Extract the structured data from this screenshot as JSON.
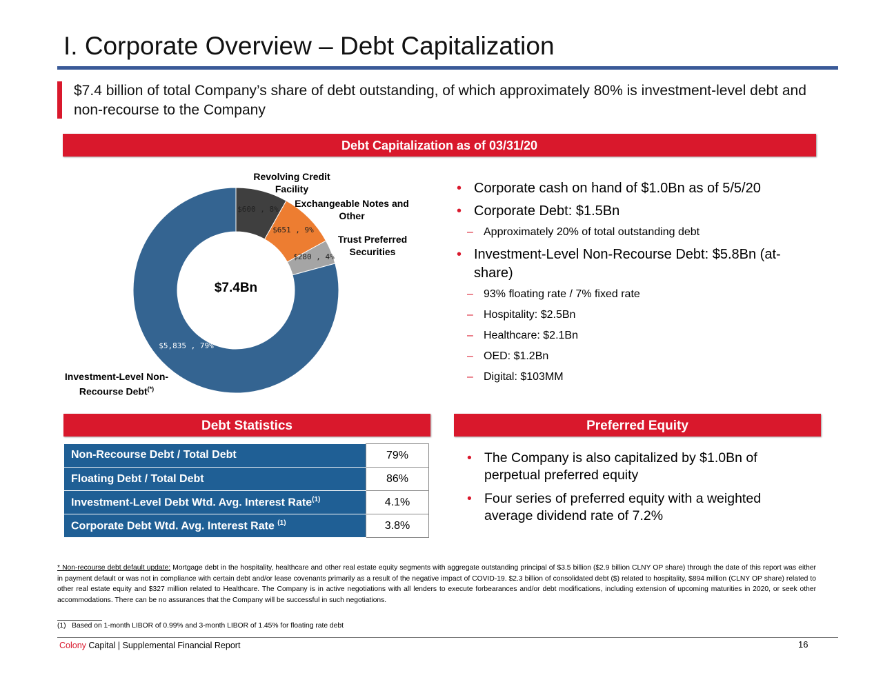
{
  "header": {
    "title": "I. Corporate Overview –  Debt Capitalization"
  },
  "subtitle": "$7.4 billion of total Company’s share of debt outstanding, of which approximately 80% is investment-level debt and non-recourse to the Company",
  "capitalization": {
    "heading": "Debt Capitalization as of 03/31/20",
    "chart_data": {
      "type": "donut",
      "categories": [
        "Revolving Credit Facility",
        "Exchangeable Notes and Other",
        "Trust Preferred Securities",
        "Investment-Level Non-Recourse Debt"
      ],
      "category_note": "(*)",
      "values": [
        600,
        651,
        280,
        5835
      ],
      "value_labels": [
        "$600 , 8%",
        "$651 , 9%",
        "$280 , 4%",
        "$5,835 , 79%"
      ],
      "colors": [
        "#3f3f3f",
        "#ed7d31",
        "#a5a5a5",
        "#346491"
      ],
      "center_label": "$7.4Bn"
    },
    "bullets": [
      {
        "level": 1,
        "text": "Corporate cash on hand of $1.0Bn as of 5/5/20"
      },
      {
        "level": 1,
        "text": "Corporate Debt: $1.5Bn"
      },
      {
        "level": 2,
        "text": "Approximately 20% of total outstanding debt"
      },
      {
        "level": 1,
        "text": "Investment-Level Non-Recourse Debt: $5.8Bn (at-share)"
      },
      {
        "level": 2,
        "text": "93% floating rate / 7% fixed rate"
      },
      {
        "level": 2,
        "text": "Hospitality: $2.5Bn"
      },
      {
        "level": 2,
        "text": "Healthcare: $2.1Bn"
      },
      {
        "level": 2,
        "text": "OED: $1.2Bn"
      },
      {
        "level": 2,
        "text": "Digital: $103MM"
      }
    ]
  },
  "debt_statistics": {
    "heading": "Debt Statistics",
    "rows": [
      {
        "label": "Non-Recourse Debt / Total Debt",
        "value": "79%"
      },
      {
        "label": "Floating Debt / Total Debt",
        "value": "86%"
      },
      {
        "label": "Investment-Level Debt Wtd. Avg. Interest Rate",
        "note": "(1)",
        "value": "4.1%"
      },
      {
        "label": "Corporate Debt Wtd. Avg. Interest Rate ",
        "note": "(1)",
        "value": "3.8%"
      }
    ]
  },
  "preferred_equity": {
    "heading": "Preferred Equity",
    "bullets": [
      "The Company is also capitalized by $1.0Bn of perpetual preferred equity",
      "Four series of preferred equity with a weighted average dividend rate of 7.2%"
    ]
  },
  "footnotes": {
    "star_heading": "* Non-recourse debt default update:",
    "star_text": " Mortgage debt in the hospitality, healthcare and other real estate equity segments with aggregate outstanding principal of $3.5 billion ($2.9 billion CLNY OP share) through the date of this report was either in payment default or was not in compliance with certain debt and/or lease covenants primarily as a result of the negative impact of COVID-19. $2.3 billion of consolidated debt ($) related to hospitality, $894 million (CLNY OP share) related to other real estate equity and $327 million related to Healthcare. The Company is in active negotiations with all lenders to execute forbearances and/or debt modifications, including extension of upcoming maturities in 2020, or seek other accommodations. There can be no assurances that the Company will be successful in such negotiations.",
    "note_1": "(1)   Based on 1-month LIBOR of 0.99% and 3-month LIBOR of 1.45% for floating rate debt"
  },
  "footer": {
    "brand_red": "Colony",
    "brand_rest": " Capital | Supplemental Financial Report",
    "page": "16"
  }
}
